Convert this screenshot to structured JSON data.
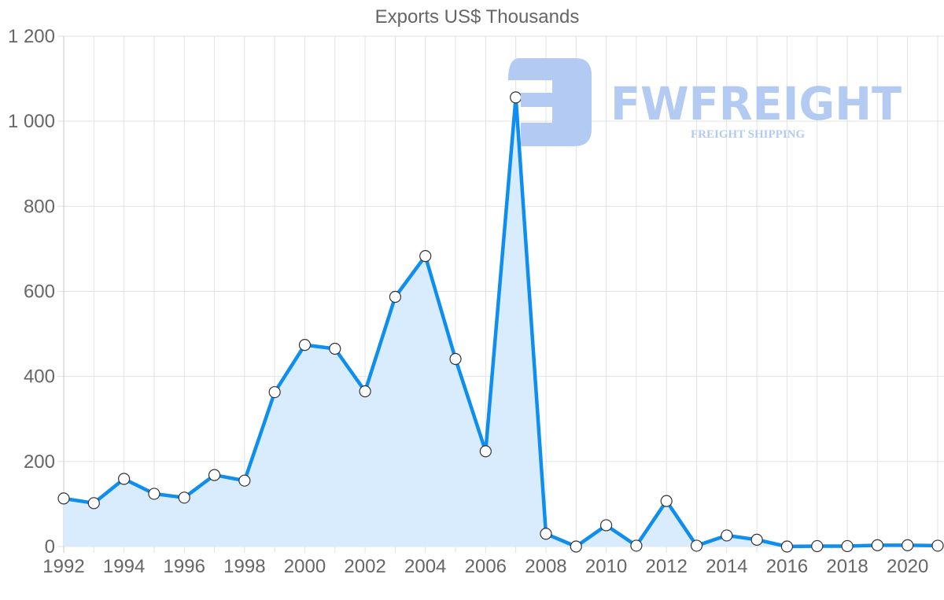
{
  "title": "Exports US$ Thousands",
  "watermark": {
    "brand": "FWFREIGHT",
    "tagline": "FREIGHT SHIPPING",
    "color": "#b3cbf2"
  },
  "colors": {
    "line": "#0e8eee",
    "fill": "#d9ecfd",
    "grid": "#e2e2e2",
    "axis_text": "#666666",
    "point_fill": "#ffffff",
    "point_stroke": "#333333"
  },
  "chart_data": {
    "type": "area",
    "title": "Exports US$ Thousands",
    "xlabel": "",
    "ylabel": "",
    "ylim": [
      0,
      1200
    ],
    "grid": true,
    "legend": null,
    "x": [
      1992,
      1993,
      1994,
      1995,
      1996,
      1997,
      1998,
      1999,
      2000,
      2001,
      2002,
      2003,
      2004,
      2005,
      2006,
      2007,
      2008,
      2009,
      2010,
      2011,
      2012,
      2013,
      2014,
      2015,
      2016,
      2017,
      2018,
      2019,
      2020,
      2021
    ],
    "x_tick_labels": [
      "1992",
      "1994",
      "1996",
      "1998",
      "2000",
      "2002",
      "2004",
      "2006",
      "2008",
      "2010",
      "2012",
      "2014",
      "2016",
      "2018",
      "2020"
    ],
    "y_tick_labels": [
      "0",
      "200",
      "400",
      "600",
      "800",
      "1 000",
      "1 200"
    ],
    "series": [
      {
        "name": "Exports US$ Thousands",
        "values": [
          113,
          102,
          159,
          124,
          115,
          168,
          155,
          363,
          474,
          465,
          365,
          587,
          683,
          441,
          224,
          1056,
          30,
          0,
          50,
          2,
          107,
          2,
          26,
          16,
          0,
          1,
          1,
          3,
          3,
          2
        ]
      }
    ]
  }
}
